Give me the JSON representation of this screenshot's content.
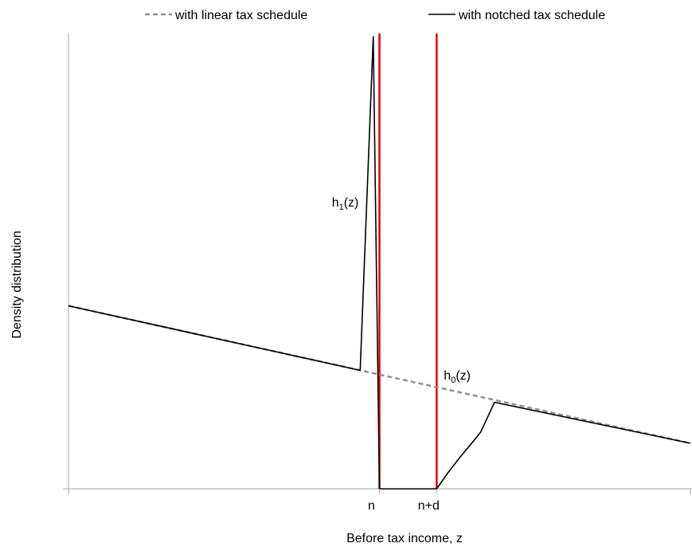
{
  "chart_data": {
    "type": "line",
    "title": "",
    "xlabel": "Before tax income, z",
    "ylabel": "Density distribution",
    "xlim": [
      0,
      100
    ],
    "ylim": [
      0,
      100
    ],
    "grid": false,
    "legend": {
      "placement": "top",
      "entries": [
        {
          "label": "with linear tax schedule",
          "style": "dashed",
          "color": "#909090"
        },
        {
          "label": "with notched tax schedule",
          "style": "solid",
          "color": "#000000"
        }
      ]
    },
    "x_ticks": [
      {
        "value": 50.0,
        "label": "n"
      },
      {
        "value": 59.2,
        "label": "n+d"
      }
    ],
    "vertical_lines": [
      {
        "x": 50.0,
        "color": "#e00000"
      },
      {
        "x": 59.2,
        "color": "#e00000"
      }
    ],
    "series": [
      {
        "style": "dashed",
        "color": "#909090",
        "x": [
          0,
          100
        ],
        "y": [
          40.2,
          10.0
        ]
      },
      {
        "style": "solid",
        "color": "#000000",
        "x": [
          0,
          46.9,
          49.0,
          50.0,
          50.1,
          59.2,
          61.0,
          63.0,
          65.0,
          66.3,
          68.5,
          100
        ],
        "y": [
          40.2,
          26.0,
          99.3,
          0,
          0,
          0,
          3.5,
          7.0,
          10.3,
          12.5,
          19.0,
          10.0
        ]
      }
    ],
    "annotations": [
      {
        "label": "h",
        "subscript": "1",
        "suffix": "(z)",
        "x": 44.5,
        "y": 62
      },
      {
        "label": "h",
        "subscript": "0",
        "suffix": "(z)",
        "x": 62.5,
        "y": 24
      }
    ]
  }
}
